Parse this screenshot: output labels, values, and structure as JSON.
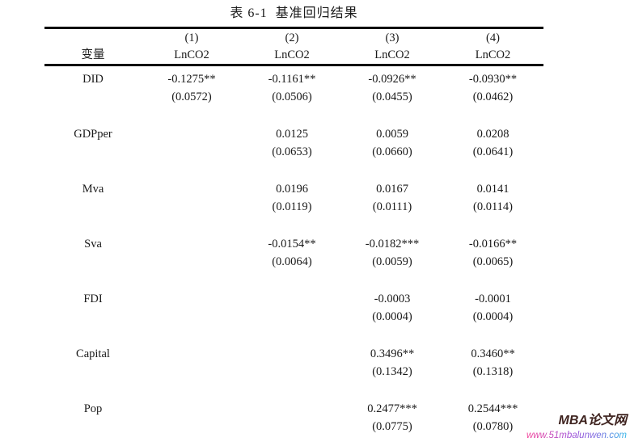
{
  "title": "表 6-1  基准回归结果",
  "table": {
    "var_header": "变量",
    "columns": [
      {
        "num": "(1)",
        "dep": "LnCO2"
      },
      {
        "num": "(2)",
        "dep": "LnCO2"
      },
      {
        "num": "(3)",
        "dep": "LnCO2"
      },
      {
        "num": "(4)",
        "dep": "LnCO2"
      }
    ],
    "rows": [
      {
        "label": "DID",
        "coefs": [
          "-0.1275**",
          "-0.1161**",
          "-0.0926**",
          "-0.0930**"
        ],
        "ses": [
          "(0.0572)",
          "(0.0506)",
          "(0.0455)",
          "(0.0462)"
        ]
      },
      {
        "label": "GDPper",
        "coefs": [
          "",
          "0.0125",
          "0.0059",
          "0.0208"
        ],
        "ses": [
          "",
          "(0.0653)",
          "(0.0660)",
          "(0.0641)"
        ]
      },
      {
        "label": "Mva",
        "coefs": [
          "",
          "0.0196",
          "0.0167",
          "0.0141"
        ],
        "ses": [
          "",
          "(0.0119)",
          "(0.0111)",
          "(0.0114)"
        ]
      },
      {
        "label": "Sva",
        "coefs": [
          "",
          "-0.0154**",
          "-0.0182***",
          "-0.0166**"
        ],
        "ses": [
          "",
          "(0.0064)",
          "(0.0059)",
          "(0.0065)"
        ]
      },
      {
        "label": "FDI",
        "coefs": [
          "",
          "",
          "-0.0003",
          "-0.0001"
        ],
        "ses": [
          "",
          "",
          "(0.0004)",
          "(0.0004)"
        ]
      },
      {
        "label": "Capital",
        "coefs": [
          "",
          "",
          "0.3496**",
          "0.3460**"
        ],
        "ses": [
          "",
          "",
          "(0.1342)",
          "(0.1318)"
        ]
      },
      {
        "label": "Pop",
        "coefs": [
          "",
          "",
          "0.2477***",
          "0.2544***"
        ],
        "ses": [
          "",
          "",
          "(0.0775)",
          "(0.0780)"
        ]
      }
    ]
  },
  "watermark": {
    "site_name": "MBA论文网",
    "site_url": "www.51mbalunwen.com"
  }
}
